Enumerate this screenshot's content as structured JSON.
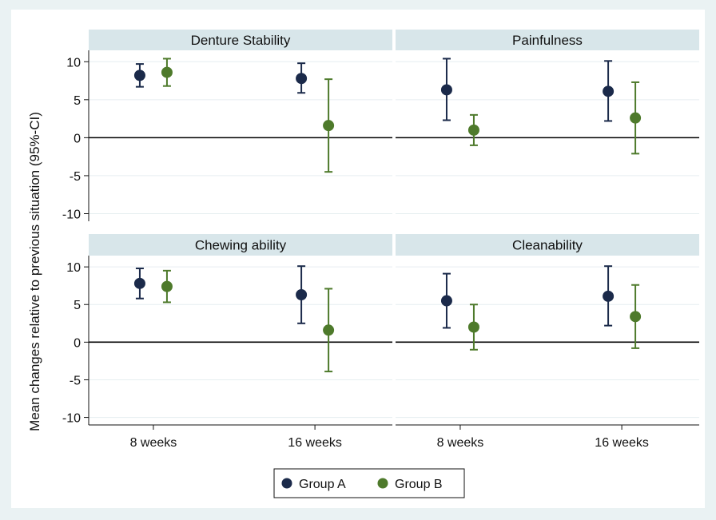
{
  "chart_data": {
    "type": "scatter",
    "ylabel": "Mean changes relative to previous situation (95%-CI)",
    "categories": [
      "8 weeks",
      "16 weeks"
    ],
    "ylim": [
      -11,
      11.5
    ],
    "yticks": [
      -10,
      -5,
      0,
      5,
      10
    ],
    "legend": {
      "position": "bottom",
      "items": [
        {
          "name": "Group A",
          "color": "#1b2a4a"
        },
        {
          "name": "Group B",
          "color": "#4e7a2b"
        }
      ]
    },
    "panels": [
      {
        "title": "Denture Stability",
        "series": [
          {
            "name": "Group A",
            "values": [
              {
                "x": "8 weeks",
                "mean": 8.2,
                "lower": 6.7,
                "upper": 9.7
              },
              {
                "x": "16 weeks",
                "mean": 7.8,
                "lower": 5.9,
                "upper": 9.8
              }
            ]
          },
          {
            "name": "Group B",
            "values": [
              {
                "x": "8 weeks",
                "mean": 8.6,
                "lower": 6.8,
                "upper": 10.4
              },
              {
                "x": "16 weeks",
                "mean": 1.6,
                "lower": -4.5,
                "upper": 7.7
              }
            ]
          }
        ]
      },
      {
        "title": "Painfulness",
        "series": [
          {
            "name": "Group A",
            "values": [
              {
                "x": "8 weeks",
                "mean": 6.3,
                "lower": 2.3,
                "upper": 10.4
              },
              {
                "x": "16 weeks",
                "mean": 6.1,
                "lower": 2.2,
                "upper": 10.1
              }
            ]
          },
          {
            "name": "Group B",
            "values": [
              {
                "x": "8 weeks",
                "mean": 1.0,
                "lower": -1.0,
                "upper": 3.0
              },
              {
                "x": "16 weeks",
                "mean": 2.6,
                "lower": -2.1,
                "upper": 7.3
              }
            ]
          }
        ]
      },
      {
        "title": "Chewing ability",
        "series": [
          {
            "name": "Group A",
            "values": [
              {
                "x": "8 weeks",
                "mean": 7.8,
                "lower": 5.8,
                "upper": 9.8
              },
              {
                "x": "16 weeks",
                "mean": 6.3,
                "lower": 2.5,
                "upper": 10.1
              }
            ]
          },
          {
            "name": "Group B",
            "values": [
              {
                "x": "8 weeks",
                "mean": 7.4,
                "lower": 5.3,
                "upper": 9.5
              },
              {
                "x": "16 weeks",
                "mean": 1.6,
                "lower": -3.9,
                "upper": 7.1
              }
            ]
          }
        ]
      },
      {
        "title": "Cleanability",
        "series": [
          {
            "name": "Group A",
            "values": [
              {
                "x": "8 weeks",
                "mean": 5.5,
                "lower": 1.9,
                "upper": 9.1
              },
              {
                "x": "16 weeks",
                "mean": 6.1,
                "lower": 2.2,
                "upper": 10.1
              }
            ]
          },
          {
            "name": "Group B",
            "values": [
              {
                "x": "8 weeks",
                "mean": 2.0,
                "lower": -1.0,
                "upper": 5.0
              },
              {
                "x": "16 weeks",
                "mean": 3.4,
                "lower": -0.8,
                "upper": 7.6
              }
            ]
          }
        ]
      }
    ]
  }
}
